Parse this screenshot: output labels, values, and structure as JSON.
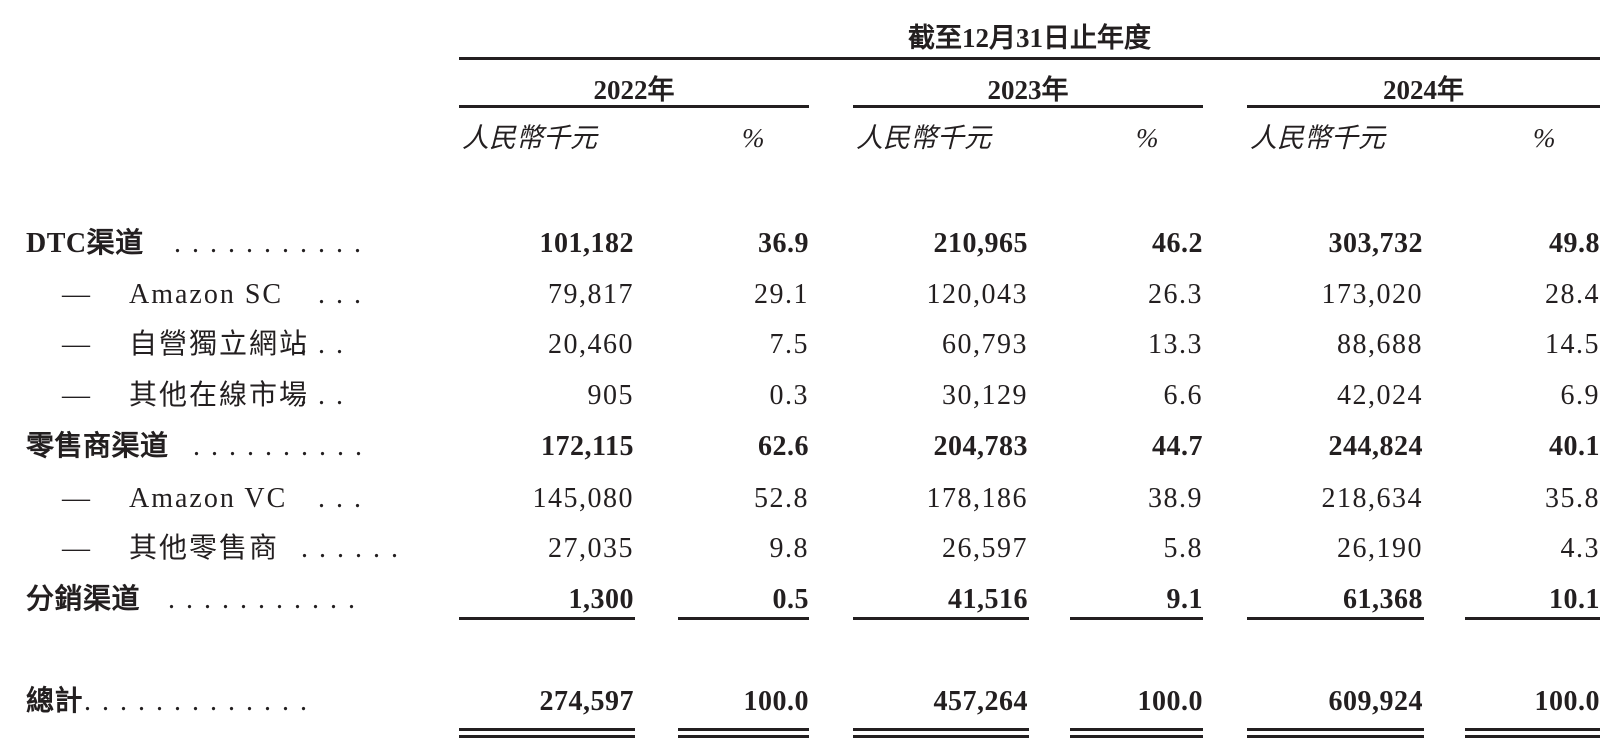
{
  "header": {
    "period": "截至12月31日止年度",
    "years": [
      "2022年",
      "2023年",
      "2024年"
    ],
    "unit_amount": "人民幣千元",
    "unit_pct": "%"
  },
  "rows": [
    {
      "label": "DTC渠道",
      "dash": "",
      "dots": ". . . . . . . . . . .",
      "bold": true,
      "values": [
        "101,182",
        "36.9",
        "210,965",
        "46.2",
        "303,732",
        "49.8"
      ]
    },
    {
      "label": "Amazon SC",
      "dash": "—",
      "dots": ". . .",
      "bold": false,
      "values": [
        "79,817",
        "29.1",
        "120,043",
        "26.3",
        "173,020",
        "28.4"
      ]
    },
    {
      "label": "自營獨立網站",
      "dash": "—",
      "dots": ". . .",
      "bold": false,
      "values": [
        "20,460",
        "7.5",
        "60,793",
        "13.3",
        "88,688",
        "14.5"
      ]
    },
    {
      "label": "其他在線市場",
      "dash": "—",
      "dots": ". . .",
      "bold": false,
      "values": [
        "905",
        "0.3",
        "30,129",
        "6.6",
        "42,024",
        "6.9"
      ]
    },
    {
      "label": "零售商渠道",
      "dash": "",
      "dots": ". . . . . . . . . .",
      "bold": true,
      "values": [
        "172,115",
        "62.6",
        "204,783",
        "44.7",
        "244,824",
        "40.1"
      ]
    },
    {
      "label": "Amazon VC",
      "dash": "—",
      "dots": ". . .",
      "bold": false,
      "values": [
        "145,080",
        "52.8",
        "178,186",
        "38.9",
        "218,634",
        "35.8"
      ]
    },
    {
      "label": "其他零售商",
      "dash": "—",
      "dots": ". . . . . .",
      "bold": false,
      "values": [
        "27,035",
        "9.8",
        "26,597",
        "5.8",
        "26,190",
        "4.3"
      ]
    },
    {
      "label": "分銷渠道",
      "dash": "",
      "dots": ". . . . . . . . . . .",
      "bold": true,
      "values": [
        "1,300",
        "0.5",
        "41,516",
        "9.1",
        "61,368",
        "10.1"
      ]
    }
  ],
  "total": {
    "label": "總計",
    "dots": ". . . . . . . . . . . . .",
    "values": [
      "274,597",
      "100.0",
      "457,264",
      "100.0",
      "609,924",
      "100.0"
    ]
  }
}
